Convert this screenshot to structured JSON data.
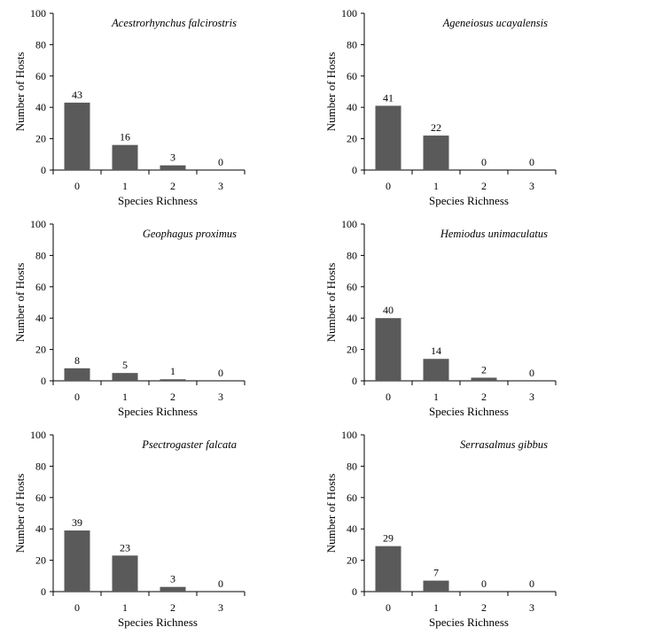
{
  "chart_data": [
    {
      "type": "bar",
      "title": "Acestrorhynchus falcirostris",
      "categories": [
        "0",
        "1",
        "2",
        "3"
      ],
      "values": [
        43,
        16,
        3,
        0
      ],
      "xlabel": "Species Richness",
      "ylabel": "Number of Hosts",
      "ylim": [
        0,
        100
      ],
      "yticks": [
        0,
        20,
        40,
        60,
        80,
        100
      ]
    },
    {
      "type": "bar",
      "title": "Ageneiosus ucayalensis",
      "categories": [
        "0",
        "1",
        "2",
        "3"
      ],
      "values": [
        41,
        22,
        0,
        0
      ],
      "xlabel": "Species Richness",
      "ylabel": "Number of Hosts",
      "ylim": [
        0,
        100
      ],
      "yticks": [
        0,
        20,
        40,
        60,
        80,
        100
      ]
    },
    {
      "type": "bar",
      "title": "Geophagus proximus",
      "categories": [
        "0",
        "1",
        "2",
        "3"
      ],
      "values": [
        8,
        5,
        1,
        0
      ],
      "xlabel": "Species Richness",
      "ylabel": "Number of Hosts",
      "ylim": [
        0,
        100
      ],
      "yticks": [
        0,
        20,
        40,
        60,
        80,
        100
      ]
    },
    {
      "type": "bar",
      "title": "Hemiodus unimaculatus",
      "categories": [
        "0",
        "1",
        "2",
        "3"
      ],
      "values": [
        40,
        14,
        2,
        0
      ],
      "xlabel": "Species Richness",
      "ylabel": "Number of Hosts",
      "ylim": [
        0,
        100
      ],
      "yticks": [
        0,
        20,
        40,
        60,
        80,
        100
      ]
    },
    {
      "type": "bar",
      "title": "Psectrogaster falcata",
      "categories": [
        "0",
        "1",
        "2",
        "3"
      ],
      "values": [
        39,
        23,
        3,
        0
      ],
      "xlabel": "Species Richness",
      "ylabel": "Number of Hosts",
      "ylim": [
        0,
        100
      ],
      "yticks": [
        0,
        20,
        40,
        60,
        80,
        100
      ]
    },
    {
      "type": "bar",
      "title": "Serrasalmus gibbus",
      "categories": [
        "0",
        "1",
        "2",
        "3"
      ],
      "values": [
        29,
        7,
        0,
        0
      ],
      "xlabel": "Species Richness",
      "ylabel": "Number of Hosts",
      "ylim": [
        0,
        100
      ],
      "yticks": [
        0,
        20,
        40,
        60,
        80,
        100
      ]
    }
  ],
  "colors": {
    "bar": "#5a5a5a",
    "axis": "#000000"
  }
}
